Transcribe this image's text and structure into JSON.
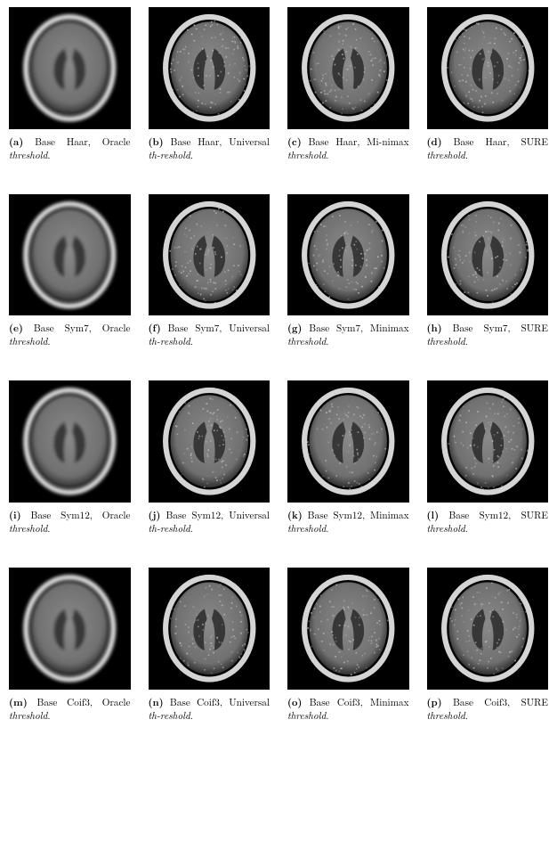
{
  "figure": {
    "layout": {
      "rows": 4,
      "cols": 4,
      "cell_aspect": 1.0
    },
    "image_style": {
      "background": "#000000",
      "ring_color": "#e6e6e6",
      "inner_fill": "#8a8a8a",
      "dark_lobe": "#2a2a2a",
      "noise_color": "#c9c9c9"
    },
    "rows": [
      {
        "base": "Haar",
        "noise_level": 0.65
      },
      {
        "base": "Sym7",
        "noise_level": 0.55
      },
      {
        "base": "Sym12",
        "noise_level": 0.5
      },
      {
        "base": "Coif3",
        "noise_level": 0.55
      }
    ],
    "cols": [
      {
        "threshold": "Oracle",
        "smooth": true
      },
      {
        "threshold": "Universal",
        "smooth": false
      },
      {
        "threshold": "Minimax",
        "smooth": false
      },
      {
        "threshold": "SURE",
        "smooth": false
      }
    ],
    "cells": [
      {
        "tag": "(a)",
        "text_before": "Base Haar, Oracle ",
        "ital": "threshold",
        "text_after": "."
      },
      {
        "tag": "(b)",
        "text_before": "Base Haar, Universal ",
        "ital": "th-reshold",
        "text_after": "."
      },
      {
        "tag": "(c)",
        "text_before": "Base Haar, Mi-nimax ",
        "ital": "threshold",
        "text_after": "."
      },
      {
        "tag": "(d)",
        "text_before": "Base Haar, SURE ",
        "ital": "threshold",
        "text_after": "."
      },
      {
        "tag": "(e)",
        "text_before": "Base Sym7, Oracle ",
        "ital": "threshold",
        "text_after": "."
      },
      {
        "tag": "(f)",
        "text_before": "Base Sym7, Universal ",
        "ital": "th-reshold",
        "text_after": "."
      },
      {
        "tag": "(g)",
        "text_before": "Base Sym7, Minimax ",
        "ital": "threshold",
        "text_after": "."
      },
      {
        "tag": "(h)",
        "text_before": "Base Sym7, SURE ",
        "ital": "threshold",
        "text_after": "."
      },
      {
        "tag": "(i)",
        "text_before": "Base Sym12, Oracle ",
        "ital": "threshold",
        "text_after": "."
      },
      {
        "tag": "(j)",
        "text_before": "Base Sym12, Universal ",
        "ital": "th-reshold",
        "text_after": "."
      },
      {
        "tag": "(k)",
        "text_before": "Base Sym12, Minimax ",
        "ital": "threshold",
        "text_after": "."
      },
      {
        "tag": "(l)",
        "text_before": "Base Sym12, SURE ",
        "ital": "threshold",
        "text_after": "."
      },
      {
        "tag": "(m)",
        "text_before": "Base Coif3, Oracle ",
        "ital": "threshold",
        "text_after": "."
      },
      {
        "tag": "(n)",
        "text_before": "Base Coif3, Universal ",
        "ital": "th-reshold",
        "text_after": "."
      },
      {
        "tag": "(o)",
        "text_before": "Base Coif3, Minimax ",
        "ital": "threshold",
        "text_after": "."
      },
      {
        "tag": "(p)",
        "text_before": "Base Coif3, SURE ",
        "ital": "threshold",
        "text_after": "."
      }
    ]
  }
}
